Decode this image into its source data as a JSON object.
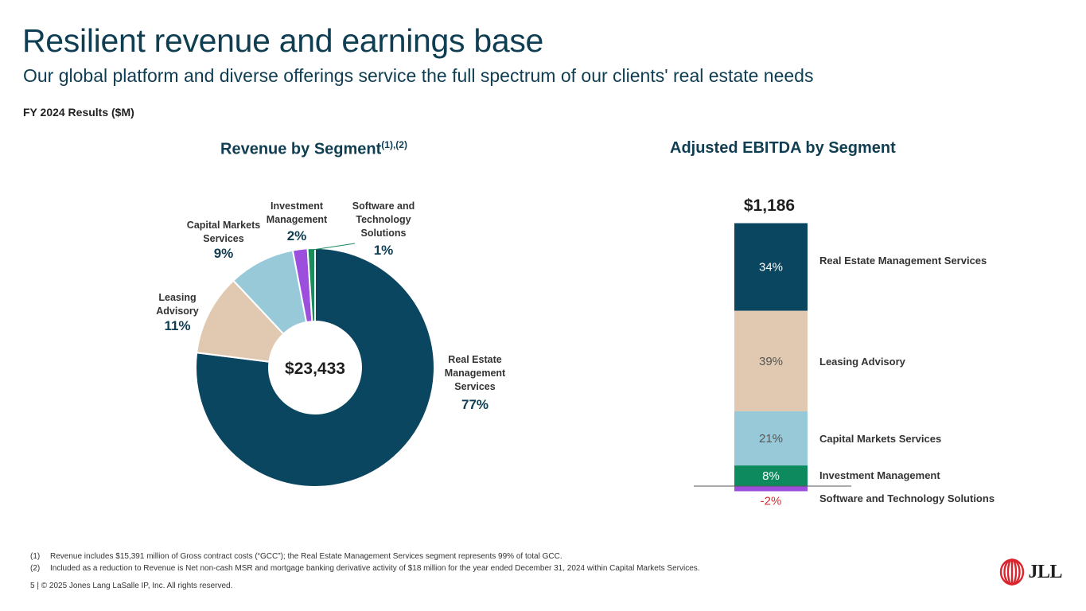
{
  "header": {
    "title": "Resilient revenue and earnings base",
    "subtitle": "Our global platform and diverse offerings service the full spectrum of our clients' real estate needs",
    "fy_label": "FY 2024 Results ($M)"
  },
  "colors": {
    "real_estate_management": "#0b4660",
    "leasing_advisory": "#e0c9b0",
    "capital_markets": "#97c9d8",
    "investment_management": "#9b4fdc",
    "investment_management_bar": "#0e8a5f",
    "software_technology": "#1b8a5c",
    "software_technology_bar": "#9b4fdc",
    "negative_text": "#d32f2f",
    "accent_text": "#0f3d52"
  },
  "chart_data": [
    {
      "type": "pie",
      "title": "Revenue by Segment",
      "title_superscript": "(1),(2)",
      "center_label": "$23,433",
      "slices": [
        {
          "key": "rems",
          "label_lines": [
            "Real Estate",
            "Management",
            "Services"
          ],
          "pct_label": "77%",
          "value": 77,
          "color": "#0b4660"
        },
        {
          "key": "la",
          "label_lines": [
            "Leasing",
            "Advisory"
          ],
          "pct_label": "11%",
          "value": 11,
          "color": "#e0c9b0"
        },
        {
          "key": "cms",
          "label_lines": [
            "Capital Markets",
            "Services"
          ],
          "pct_label": "9%",
          "value": 9,
          "color": "#97c9d8"
        },
        {
          "key": "im",
          "label_lines": [
            "Investment",
            "Management"
          ],
          "pct_label": "2%",
          "value": 2,
          "color": "#9b4fdc"
        },
        {
          "key": "sts",
          "label_lines": [
            "Software and",
            "Technology",
            "Solutions"
          ],
          "pct_label": "1%",
          "value": 1,
          "color": "#1b8a5c"
        }
      ]
    },
    {
      "type": "bar",
      "stacked": true,
      "title": "Adjusted EBITDA by Segment",
      "total_label": "$1,186",
      "series": [
        {
          "name": "Real Estate Management Services",
          "value": 34,
          "pct_label": "34%",
          "color": "#0b4660",
          "text_color": "#ffffff"
        },
        {
          "name": "Leasing Advisory",
          "value": 39,
          "pct_label": "39%",
          "color": "#e0c9b0",
          "text_color": "#555555"
        },
        {
          "name": "Capital Markets Services",
          "value": 21,
          "pct_label": "21%",
          "color": "#97c9d8",
          "text_color": "#555555"
        },
        {
          "name": "Investment Management",
          "value": 8,
          "pct_label": "8%",
          "color": "#0e8a5f",
          "text_color": "#ffffff"
        },
        {
          "name": "Software and Technology Solutions",
          "value": -2,
          "pct_label": "-2%",
          "color": "#9b4fdc",
          "text_color": "#d32f2f"
        }
      ]
    }
  ],
  "footnotes": [
    {
      "num": "(1)",
      "text": "Revenue includes $15,391 million of Gross contract costs (“GCC”); the Real Estate Management Services segment represents 99% of total GCC."
    },
    {
      "num": "(2)",
      "text": "Included as a reduction to Revenue is Net non-cash MSR and mortgage banking derivative activity of $18 million for the year ended December 31, 2024 within Capital Markets Services."
    }
  ],
  "footer": {
    "page_number": "5",
    "separator": "|",
    "copyright": "© 2025 Jones Lang LaSalle IP, Inc. All rights reserved."
  },
  "logo": {
    "text": "JLL",
    "icon": "jll-logo-icon"
  }
}
